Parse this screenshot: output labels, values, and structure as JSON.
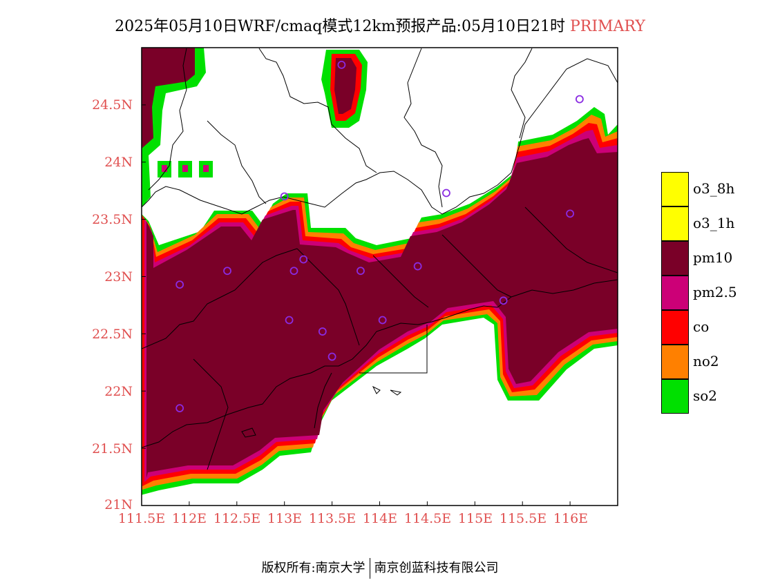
{
  "title": {
    "main": "2025年05月10日WRF/cmaq模式12km预报产品:05月10日21时",
    "sub": "PRIMARY"
  },
  "y_ticks": [
    "24.5N",
    "24N",
    "23.5N",
    "23N",
    "22.5N",
    "22N",
    "21.5N",
    "21N"
  ],
  "x_ticks": [
    "111.5E",
    "112E",
    "112.5E",
    "113E",
    "113.5E",
    "114E",
    "114.5E",
    "115E",
    "115.5E",
    "116E"
  ],
  "legend": [
    {
      "label": "o3_8h",
      "color": "#ffff00"
    },
    {
      "label": "o3_1h",
      "color": "#ffff00"
    },
    {
      "label": "pm10",
      "color": "#7a0028"
    },
    {
      "label": "pm2.5",
      "color": "#cc0077"
    },
    {
      "label": "co",
      "color": "#ff0000"
    },
    {
      "label": "no2",
      "color": "#ff8000"
    },
    {
      "label": "so2",
      "color": "#00e000"
    }
  ],
  "footer": {
    "left": "版权所有:南京大学",
    "right": "南京创蓝科技有限公司"
  },
  "chart_data": {
    "type": "heatmap",
    "xlim": [
      111.5,
      116.5
    ],
    "ylim": [
      21.0,
      25.0
    ],
    "stations": [
      [
        113.6,
        24.85
      ],
      [
        116.1,
        24.55
      ],
      [
        114.7,
        23.73
      ],
      [
        113.0,
        23.7
      ],
      [
        116.0,
        23.55
      ],
      [
        111.9,
        22.93
      ],
      [
        112.4,
        23.05
      ],
      [
        113.2,
        23.15
      ],
      [
        113.1,
        23.05
      ],
      [
        113.8,
        23.05
      ],
      [
        114.4,
        23.09
      ],
      [
        115.3,
        22.79
      ],
      [
        113.05,
        22.62
      ],
      [
        113.4,
        22.52
      ],
      [
        114.03,
        22.62
      ],
      [
        113.5,
        22.3
      ],
      [
        111.9,
        21.85
      ]
    ]
  }
}
